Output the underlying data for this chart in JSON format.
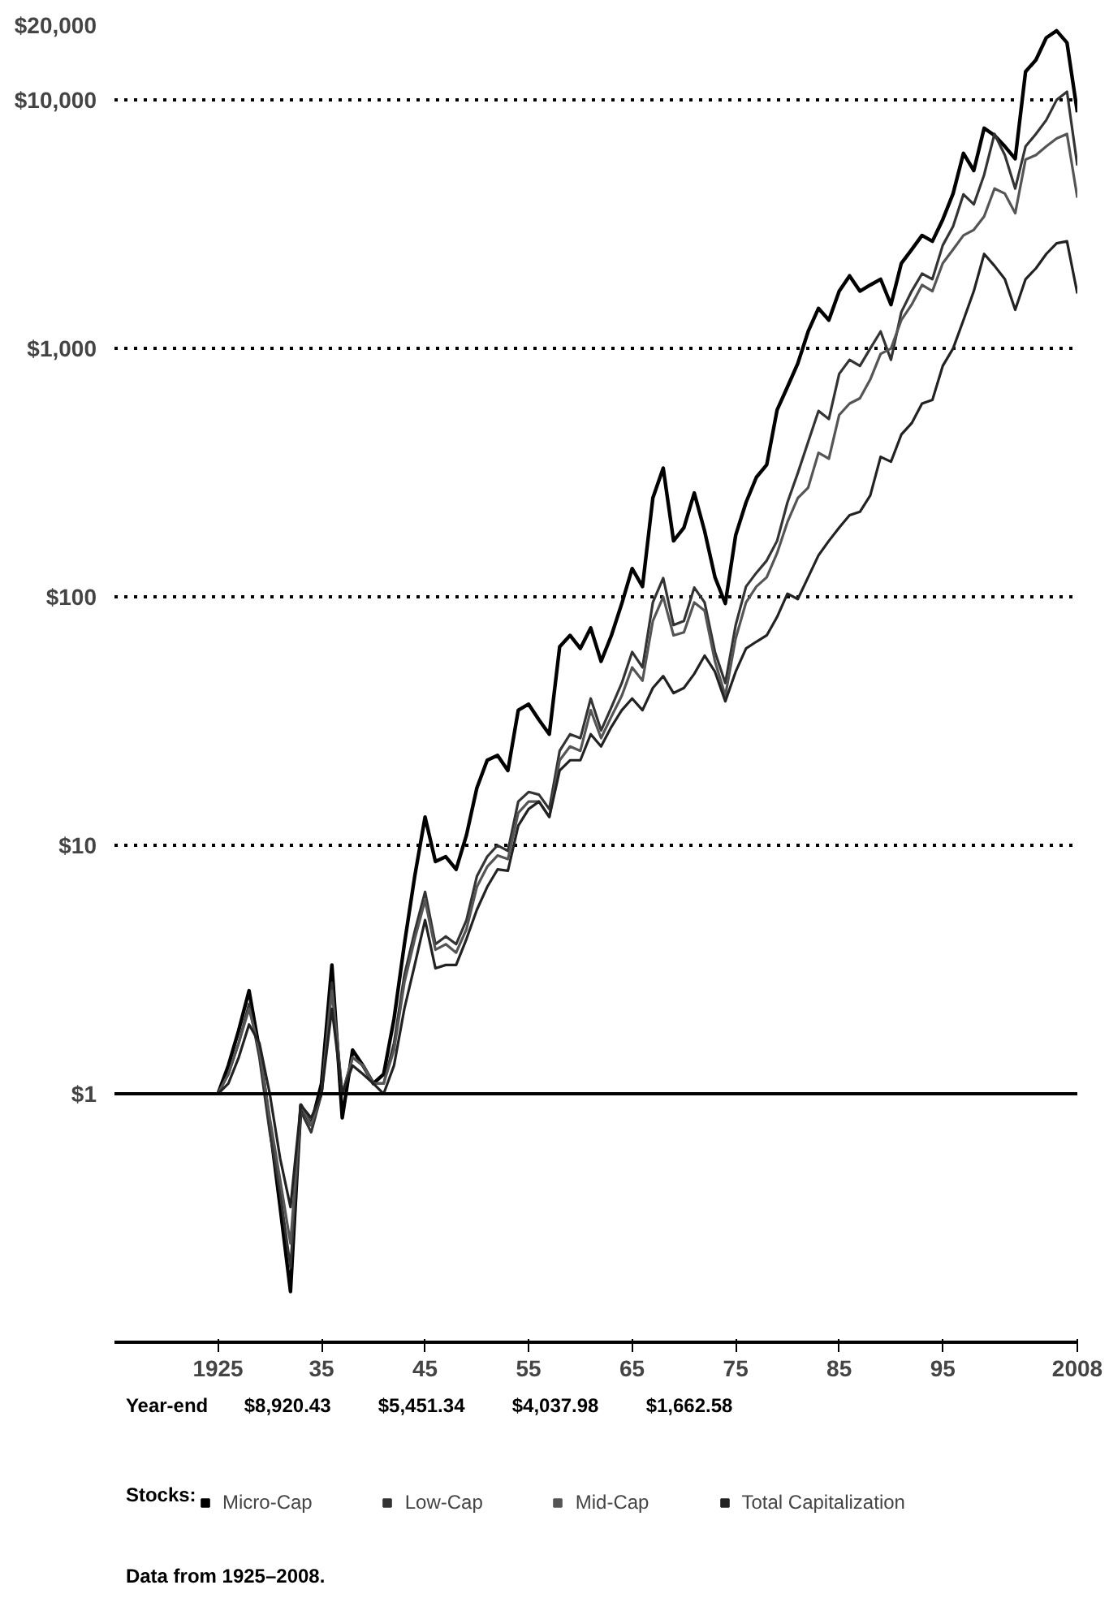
{
  "chart_data": {
    "type": "line",
    "x": [
      1925,
      1926,
      1927,
      1928,
      1929,
      1930,
      1931,
      1932,
      1933,
      1934,
      1935,
      1936,
      1937,
      1938,
      1939,
      1940,
      1941,
      1942,
      1943,
      1944,
      1945,
      1946,
      1947,
      1948,
      1949,
      1950,
      1951,
      1952,
      1953,
      1954,
      1955,
      1956,
      1957,
      1958,
      1959,
      1960,
      1961,
      1962,
      1963,
      1964,
      1965,
      1966,
      1967,
      1968,
      1969,
      1970,
      1971,
      1972,
      1973,
      1974,
      1975,
      1976,
      1977,
      1978,
      1979,
      1980,
      1981,
      1982,
      1983,
      1984,
      1985,
      1986,
      1987,
      1988,
      1989,
      1990,
      1991,
      1992,
      1993,
      1994,
      1995,
      1996,
      1997,
      1998,
      1999,
      2000,
      2001,
      2002,
      2003,
      2004,
      2005,
      2006,
      2007,
      2008
    ],
    "series": [
      {
        "name": "Micro-Cap",
        "color": "#000000",
        "values": [
          1,
          1.3,
          1.8,
          2.6,
          1.5,
          0.75,
          0.35,
          0.16,
          0.9,
          0.75,
          1.1,
          3.3,
          0.8,
          1.5,
          1.3,
          1.1,
          1.2,
          2.0,
          4.0,
          7.5,
          13,
          8.6,
          9,
          8,
          11,
          17,
          22,
          23,
          20,
          35,
          37,
          32,
          28,
          63,
          70,
          62,
          75,
          55,
          70,
          94,
          130,
          110,
          250,
          330,
          168,
          190,
          262,
          184,
          120,
          94,
          177,
          240,
          303,
          340,
          565,
          700,
          870,
          1170,
          1450,
          1300,
          1700,
          1960,
          1700,
          1800,
          1900,
          1500,
          2200,
          2500,
          2850,
          2700,
          3300,
          4200,
          6100,
          5200,
          7700,
          7200,
          6500,
          5800,
          13000,
          14500,
          17800,
          19000,
          17000,
          8920.43
        ]
      },
      {
        "name": "Low-Cap",
        "color": "#333333",
        "values": [
          1,
          1.2,
          1.6,
          2.3,
          1.4,
          0.7,
          0.4,
          0.2,
          0.85,
          0.7,
          1.0,
          2.8,
          1.0,
          1.4,
          1.3,
          1.1,
          1.1,
          1.6,
          3.0,
          4.5,
          6.5,
          4.0,
          4.3,
          4.0,
          5.0,
          7.5,
          9.0,
          10,
          9.5,
          15,
          16.4,
          16,
          14,
          24,
          28,
          27,
          39,
          29,
          36,
          45,
          60,
          52,
          95,
          119,
          77,
          80,
          109,
          95,
          60,
          45,
          77,
          110,
          125,
          140,
          168,
          240,
          315,
          420,
          560,
          520,
          790,
          900,
          850,
          1000,
          1170,
          900,
          1400,
          1700,
          2000,
          1900,
          2600,
          3100,
          4170,
          3800,
          5000,
          7300,
          6000,
          4400,
          6500,
          7300,
          8300,
          10000,
          10800,
          5451.34
        ]
      },
      {
        "name": "Mid-Cap",
        "color": "#555555",
        "values": [
          1,
          1.2,
          1.6,
          2.2,
          1.5,
          0.8,
          0.45,
          0.25,
          0.9,
          0.75,
          1.0,
          2.6,
          1.0,
          1.4,
          1.3,
          1.1,
          1.1,
          1.5,
          2.8,
          4.2,
          6.0,
          3.8,
          4.0,
          3.7,
          4.6,
          6.8,
          8.2,
          9.1,
          8.8,
          13.5,
          15,
          15,
          13,
          22,
          25,
          24,
          35,
          27,
          33,
          40,
          52,
          46,
          80,
          100,
          70,
          72,
          95,
          88,
          55,
          40,
          68,
          95,
          110,
          120,
          150,
          200,
          250,
          275,
          380,
          360,
          540,
          600,
          630,
          750,
          950,
          1000,
          1300,
          1500,
          1800,
          1700,
          2200,
          2500,
          2850,
          3000,
          3400,
          4400,
          4200,
          3500,
          5760,
          6000,
          6500,
          7000,
          7300,
          4037.98
        ]
      },
      {
        "name": "Total Capitalization",
        "color": "#222222",
        "values": [
          1,
          1.1,
          1.4,
          1.9,
          1.6,
          1.0,
          0.55,
          0.35,
          0.9,
          0.8,
          1.0,
          2.2,
          1.0,
          1.3,
          1.2,
          1.1,
          1.0,
          1.3,
          2.2,
          3.3,
          5.0,
          3.2,
          3.3,
          3.3,
          4.2,
          5.5,
          6.8,
          8.0,
          7.9,
          12,
          14,
          15,
          13,
          20,
          22,
          22,
          28,
          25,
          30,
          35,
          39,
          35,
          43,
          48,
          41,
          43,
          49,
          58,
          50,
          38,
          50,
          62,
          66,
          70,
          83,
          103,
          98,
          120,
          147,
          168,
          190,
          213,
          220,
          256,
          366,
          350,
          450,
          500,
          600,
          620,
          850,
          1000,
          1300,
          1700,
          2400,
          2150,
          1900,
          1430,
          1900,
          2100,
          2400,
          2650,
          2700,
          1662.58
        ]
      }
    ],
    "log": "y",
    "xlim": [
      1915,
      2008
    ],
    "xticks": [
      1925,
      {
        "value": 1935,
        "label": "35"
      },
      {
        "value": 1945,
        "label": "45"
      },
      {
        "value": 1955,
        "label": "55"
      },
      {
        "value": 1965,
        "label": "65"
      },
      {
        "value": 1975,
        "label": "75"
      },
      {
        "value": 1985,
        "label": "85"
      },
      {
        "value": 1995,
        "label": "95"
      },
      2008
    ],
    "ylim": [
      0.1,
      20000
    ],
    "yticks": [
      {
        "value": 1,
        "label": "$1"
      },
      {
        "value": 10,
        "label": "$10"
      },
      {
        "value": 100,
        "label": "$100"
      },
      {
        "value": 1000,
        "label": "$1,000"
      },
      {
        "value": 10000,
        "label": "$10,000"
      },
      {
        "value": 20000,
        "label": "$20,000"
      }
    ],
    "grid": "y",
    "ref_lines": [
      {
        "axis": "y",
        "value": 1,
        "line_style": "solid",
        "color": "#000000"
      }
    ],
    "legend": "bottom",
    "legend_title": "Stocks:",
    "annotations": [
      "Year-end",
      "$8,920.43",
      "$5,451.34",
      "$4,037.98",
      "$1,662.58",
      "Data from 1925–2008."
    ]
  }
}
